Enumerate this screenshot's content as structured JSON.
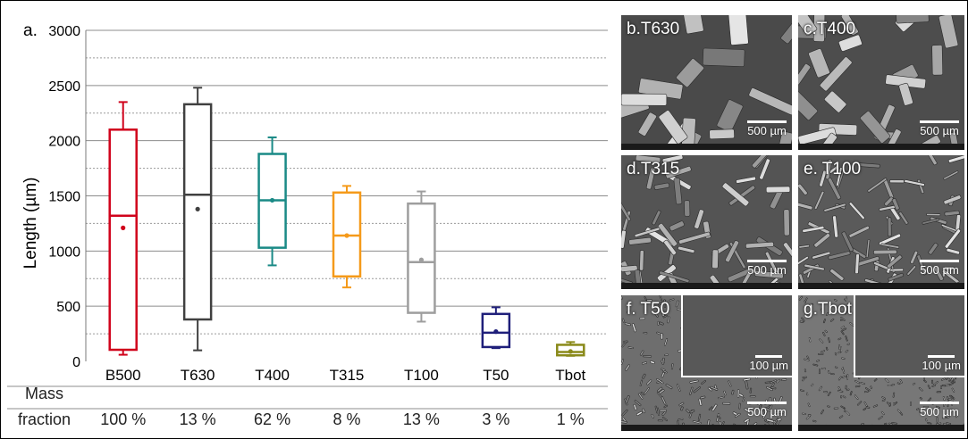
{
  "panel_label": "a.",
  "mass_fraction_label_1": "Mass",
  "mass_fraction_label_2": "fraction",
  "mass_fractions": [
    "100 %",
    "13 %",
    "62 %",
    "8 %",
    "13 %",
    "3 %",
    "1 %"
  ],
  "chart_data": {
    "type": "box",
    "ylabel": "Length (µm)",
    "ylim": [
      0,
      3000
    ],
    "yticks": [
      0,
      500,
      1000,
      1500,
      2000,
      2500,
      3000
    ],
    "grid": true,
    "categories": [
      "B500",
      "T630",
      "T400",
      "T315",
      "T100",
      "T50",
      "Tbot"
    ],
    "boxes": [
      {
        "category": "B500",
        "min": 60,
        "q1": 105,
        "median": 1320,
        "q3": 2100,
        "max": 2350,
        "mean": 1210,
        "color": "#d0021b"
      },
      {
        "category": "T630",
        "min": 100,
        "q1": 380,
        "median": 1510,
        "q3": 2330,
        "max": 2480,
        "mean": 1380,
        "color": "#404040"
      },
      {
        "category": "T400",
        "min": 870,
        "q1": 1030,
        "median": 1460,
        "q3": 1880,
        "max": 2030,
        "mean": 1460,
        "color": "#1a8a86"
      },
      {
        "category": "T315",
        "min": 670,
        "q1": 770,
        "median": 1140,
        "q3": 1530,
        "max": 1590,
        "mean": 1140,
        "color": "#f59a1a"
      },
      {
        "category": "T100",
        "min": 360,
        "q1": 440,
        "median": 900,
        "q3": 1430,
        "max": 1540,
        "mean": 920,
        "color": "#9e9e9e"
      },
      {
        "category": "T50",
        "min": 120,
        "q1": 130,
        "median": 260,
        "q3": 430,
        "max": 490,
        "mean": 270,
        "color": "#1f1f7a"
      },
      {
        "category": "Tbot",
        "min": 50,
        "q1": 55,
        "median": 85,
        "q3": 150,
        "max": 175,
        "mean": 90,
        "color": "#8a8a1a"
      }
    ]
  },
  "micrographs": [
    {
      "label": "b.T630",
      "scale": "500 µm",
      "inset_scale": ""
    },
    {
      "label": "c.T400",
      "scale": "500 µm",
      "inset_scale": ""
    },
    {
      "label": "d.T315",
      "scale": "500 µm",
      "inset_scale": ""
    },
    {
      "label": "e. T100",
      "scale": "500 µm",
      "inset_scale": ""
    },
    {
      "label": "f. T50",
      "scale": "500 µm",
      "inset_scale": "100 µm"
    },
    {
      "label": "g.Tbot",
      "scale": "500 µm",
      "inset_scale": "100 µm"
    }
  ]
}
